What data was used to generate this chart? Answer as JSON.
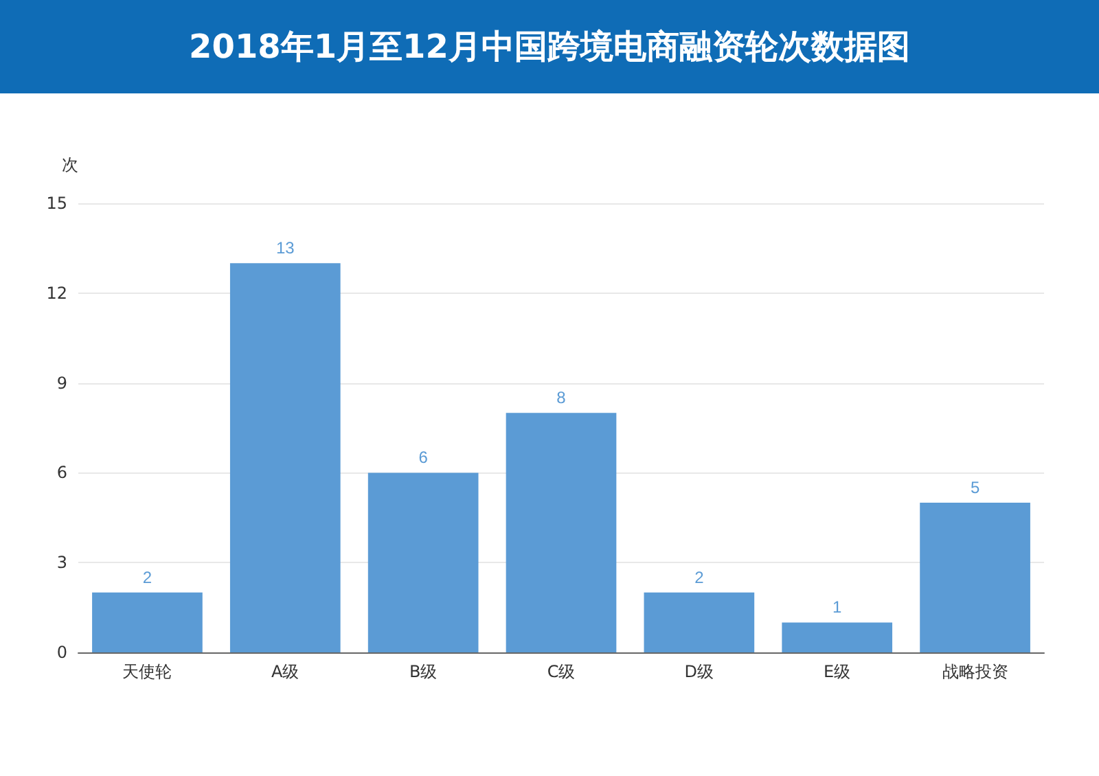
{
  "chart_data": {
    "type": "bar",
    "title": "2018年1月至12月中国跨境电商融资轮次数据图",
    "ylabel": "次",
    "categories": [
      "天使轮",
      "A级",
      "B级",
      "C级",
      "D级",
      "E级",
      "战略投资"
    ],
    "values": [
      2,
      13,
      6,
      8,
      2,
      1,
      5
    ],
    "color": "#5b9bd5",
    "ylim": [
      0,
      15
    ],
    "yticks": [
      0,
      3,
      6,
      9,
      12,
      15
    ],
    "grid": "y",
    "data_labels": true
  }
}
